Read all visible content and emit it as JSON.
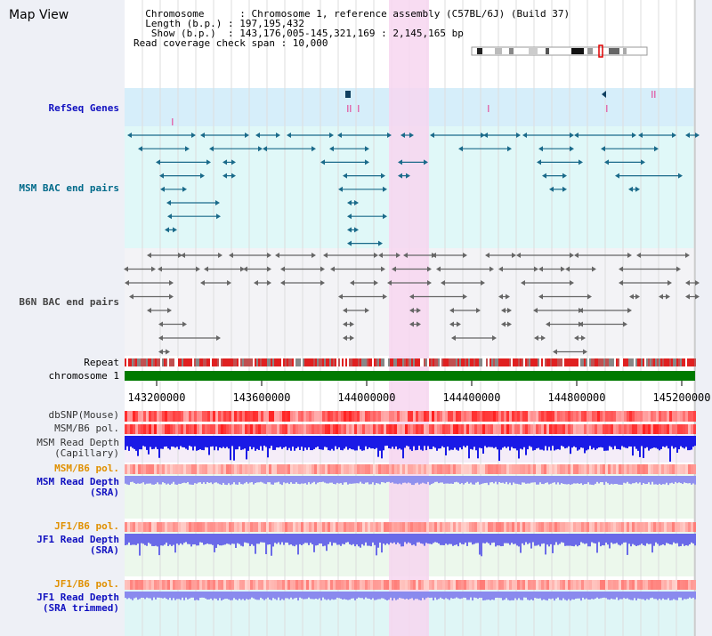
{
  "title": "Map View",
  "info": {
    "line1": "  Chromosome      : Chromosome 1, reference assembly (C57BL/6J) (Build 37)",
    "line2": "  Length (b.p.) : 197,195,432",
    "line3": "   Show (b.p.)  : 143,176,005-145,321,169 : 2,145,165 bp",
    "line4": "Read coverage check span : 10,000"
  },
  "tracks": {
    "refseq": "RefSeq Genes",
    "msm_bac": "MSM BAC end pairs",
    "b6n_bac": "B6N BAC end pairs",
    "repeat": "Repeat",
    "chromosome": "chromosome 1",
    "dbsnp": "dbSNP(Mouse)",
    "msm_b6_pol": "MSM/B6 pol.",
    "msm_depth_cap": "MSM Read Depth\n(Capillary)",
    "msm_b6_pol2": "MSM/B6 pol.",
    "msm_depth_sra": "MSM Read Depth\n(SRA)",
    "jf1_b6_pol": "JF1/B6 pol.",
    "jf1_depth_sra": "JF1 Read Depth\n(SRA)",
    "jf1_b6_pol2": "JF1/B6 pol.",
    "jf1_depth_trim": "JF1 Read Depth\n(SRA trimmed)"
  },
  "axis": {
    "ticks": [
      "143200000",
      "143600000",
      "144000000",
      "144400000",
      "144800000",
      "145200000"
    ]
  },
  "colors": {
    "refseq_bg": "#d6eefa",
    "msm_bg": "#e0f8f8",
    "b6n_bg": "#f3f3f6",
    "highlight": "#f7d6f0",
    "chromosome": "#007a00",
    "orange_label": "#e09000",
    "blue_label": "#1010c0",
    "teal_label": "#006a8a"
  }
}
